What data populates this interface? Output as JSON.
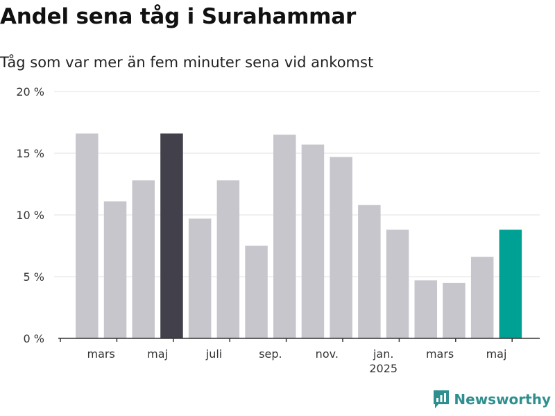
{
  "header": {
    "title": "Andel sena tåg i Surahammar",
    "subtitle": "Tåg som var mer än fem minuter sena vid ankomst"
  },
  "brand": {
    "name": "Newsworthy",
    "icon": "newsworthy-logo-icon",
    "color": "#2f8f8f"
  },
  "colors": {
    "bar": "#c7c6cc",
    "highlight_dark": "#41404b",
    "highlight_accent": "#00a195",
    "grid": "#e1e1e1",
    "axis": "#333333"
  },
  "chart_data": {
    "type": "bar",
    "title": "Andel sena tåg i Surahammar",
    "subtitle": "Tåg som var mer än fem minuter sena vid ankomst",
    "categories": [
      "2024-02",
      "2024-03",
      "2024-04",
      "2024-05",
      "2024-06",
      "2024-07",
      "2024-08",
      "2024-09",
      "2024-10",
      "2024-11",
      "2024-12",
      "2025-01",
      "2025-02",
      "2025-03",
      "2025-04",
      "2025-05"
    ],
    "values": [
      16.6,
      11.1,
      12.8,
      16.6,
      9.7,
      12.8,
      7.5,
      16.5,
      15.7,
      14.7,
      10.8,
      8.8,
      4.7,
      4.5,
      6.6,
      8.8
    ],
    "highlights": [
      {
        "category": "2024-05",
        "color": "#41404b"
      },
      {
        "category": "2025-05",
        "color": "#00a195"
      }
    ],
    "ylim": [
      0,
      20
    ],
    "yticks": [
      0,
      5,
      10,
      15,
      20
    ],
    "ytick_labels": [
      "0 %",
      "5 %",
      "10 %",
      "15 %",
      "20 %"
    ],
    "xtick_labels": [
      {
        "category": "2024-03",
        "label": "mars"
      },
      {
        "category": "2024-05",
        "label": "maj"
      },
      {
        "category": "2024-07",
        "label": "juli"
      },
      {
        "category": "2024-09",
        "label": "sep."
      },
      {
        "category": "2024-11",
        "label": "nov."
      },
      {
        "category": "2025-01",
        "label": "jan.",
        "sublabel": "2025"
      },
      {
        "category": "2025-03",
        "label": "mars"
      },
      {
        "category": "2025-05",
        "label": "maj"
      }
    ],
    "xlabel": "",
    "ylabel": "",
    "grid": true,
    "legend": "none"
  }
}
